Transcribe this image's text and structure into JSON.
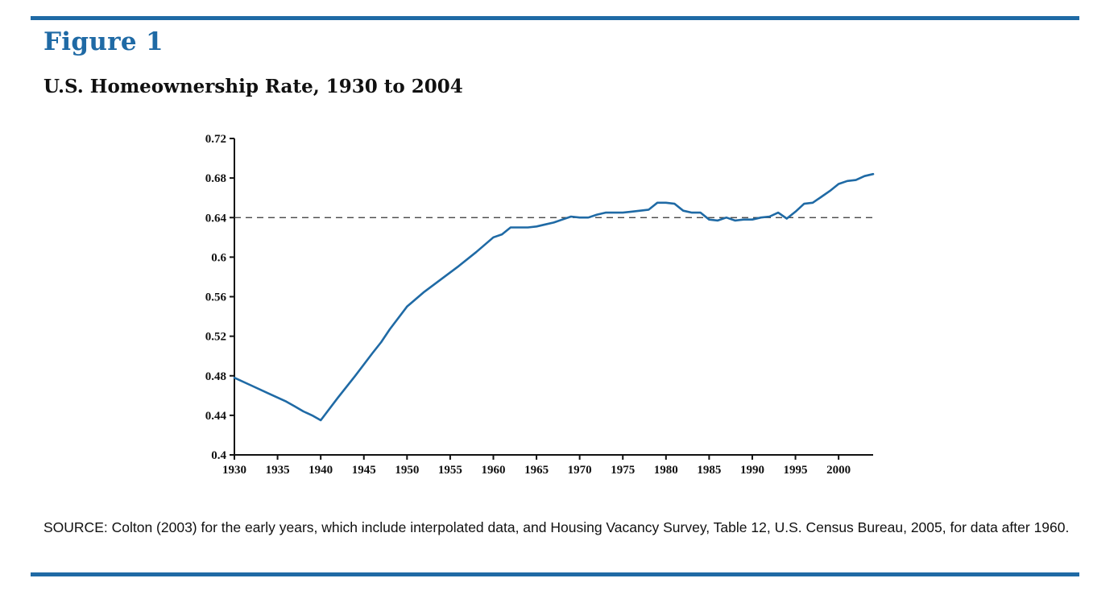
{
  "figure": {
    "label": "Figure 1",
    "title": "U.S. Homeownership Rate, 1930 to 2004",
    "source": "SOURCE: Colton (2003) for the early years, which include interpolated data, and Housing Vacancy Survey, Table 12, U.S. Census Bureau, 2005, for data after 1960."
  },
  "colors": {
    "accent": "#1f6aa5",
    "line": "#1f6aa5",
    "reference": "#333333",
    "text": "#111111"
  },
  "chart_data": {
    "type": "line",
    "title": "U.S. Homeownership Rate, 1930 to 2004",
    "xlabel": "",
    "ylabel": "",
    "xlim": [
      1930,
      2004
    ],
    "ylim": [
      0.4,
      0.72
    ],
    "xticks": [
      1930,
      1935,
      1940,
      1945,
      1950,
      1955,
      1960,
      1965,
      1970,
      1975,
      1980,
      1985,
      1990,
      1995,
      2000
    ],
    "yticks": [
      0.4,
      0.44,
      0.48,
      0.52,
      0.56,
      0.6,
      0.64,
      0.68,
      0.72
    ],
    "ytick_labels": [
      "0.4",
      "0.44",
      "0.48",
      "0.52",
      "0.56",
      "0.6",
      "0.64",
      "0.68",
      "0.72"
    ],
    "grid": false,
    "legend": "none",
    "reference_line": {
      "y": 0.64,
      "style": "dashed"
    },
    "series": [
      {
        "x": [
          1930,
          1932,
          1934,
          1936,
          1937,
          1938,
          1939,
          1940,
          1942,
          1944,
          1946,
          1947,
          1948,
          1950,
          1952,
          1954,
          1956,
          1958,
          1960,
          1961,
          1962,
          1963,
          1964,
          1965,
          1966,
          1967,
          1968,
          1969,
          1970,
          1971,
          1972,
          1973,
          1974,
          1975,
          1976,
          1977,
          1978,
          1979,
          1980,
          1981,
          1982,
          1983,
          1984,
          1985,
          1986,
          1987,
          1988,
          1989,
          1990,
          1991,
          1992,
          1993,
          1994,
          1995,
          1996,
          1997,
          1998,
          1999,
          2000,
          2001,
          2002,
          2003,
          2004
        ],
        "values": [
          0.478,
          0.47,
          0.462,
          0.454,
          0.449,
          0.444,
          0.44,
          0.435,
          0.458,
          0.48,
          0.503,
          0.514,
          0.527,
          0.55,
          0.565,
          0.578,
          0.591,
          0.605,
          0.62,
          0.623,
          0.63,
          0.63,
          0.63,
          0.631,
          0.633,
          0.635,
          0.638,
          0.641,
          0.64,
          0.64,
          0.643,
          0.645,
          0.645,
          0.645,
          0.646,
          0.647,
          0.648,
          0.655,
          0.655,
          0.654,
          0.647,
          0.645,
          0.645,
          0.638,
          0.637,
          0.64,
          0.637,
          0.638,
          0.638,
          0.64,
          0.641,
          0.645,
          0.639,
          0.646,
          0.654,
          0.655,
          0.661,
          0.667,
          0.674,
          0.677,
          0.678,
          0.682,
          0.684
        ]
      }
    ]
  }
}
